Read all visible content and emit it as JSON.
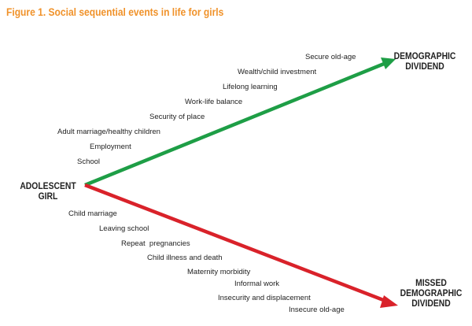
{
  "title": "Figure 1. Social sequential events in life for girls",
  "colors": {
    "title": "#f0922a",
    "positive_arrow": "#1e9e46",
    "negative_arrow": "#d9222a"
  },
  "origin": {
    "line1": "ADOLESCENT",
    "line2": "GIRL"
  },
  "positive_end": {
    "line1": "DEMOGRAPHIC",
    "line2": "DIVIDEND"
  },
  "negative_end": {
    "line1": "MISSED",
    "line2": "DEMOGRAPHIC",
    "line3": "DIVIDEND"
  },
  "positive_events": [
    "Secure old-age",
    "Wealth/child investment",
    "Lifelong learning",
    "Work-life balance",
    "Security of place",
    "Adult marriage/healthy children",
    "Employment",
    "School"
  ],
  "negative_events": [
    "Child marriage",
    "Leaving school",
    "Repeat  pregnancies",
    "Child illness and death",
    "Maternity morbidity",
    "Informal work",
    "Insecurity and displacement",
    "Insecure old-age"
  ]
}
